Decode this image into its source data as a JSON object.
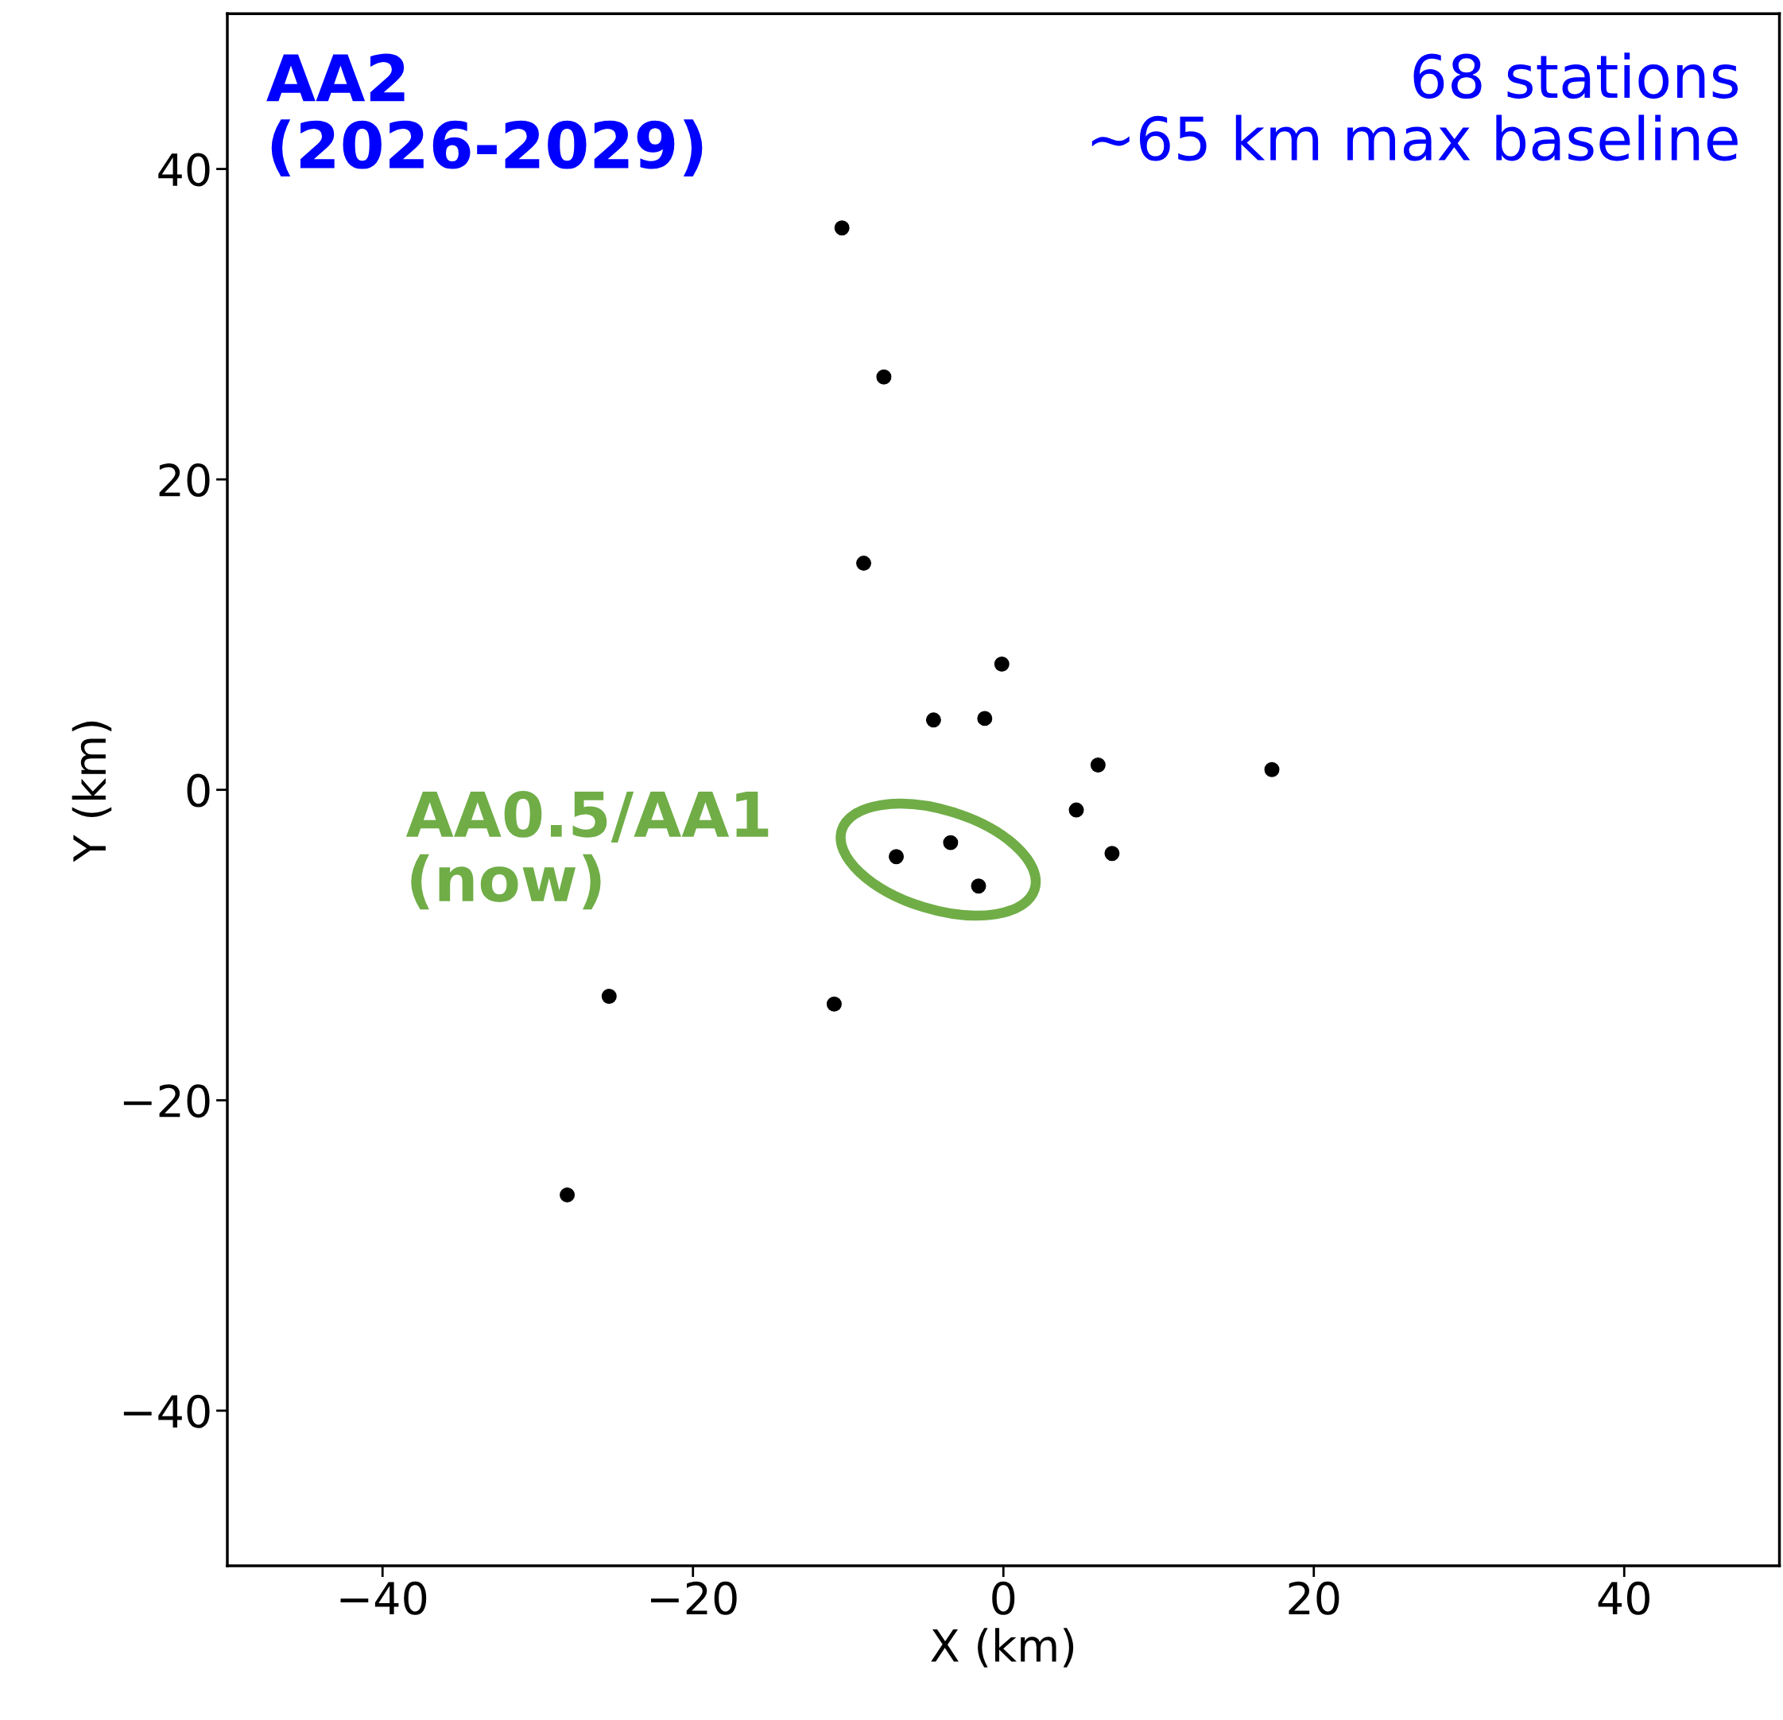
{
  "chart_data": {
    "type": "scatter",
    "title": "AA2\n(2026-2029)",
    "subtitle": "68 stations\n~65 km max baseline",
    "xlabel": "X (km)",
    "ylabel": "Y (km)",
    "x": [
      -10.4,
      -7.7,
      -9.0,
      -0.1,
      -4.5,
      -1.2,
      6.1,
      17.3,
      4.7,
      7.0,
      -6.9,
      -3.4,
      -1.6,
      -25.4,
      -10.9,
      -28.1
    ],
    "values": [
      36.2,
      26.6,
      14.6,
      8.1,
      4.5,
      4.6,
      1.6,
      1.3,
      -1.3,
      -4.1,
      -4.3,
      -3.4,
      -6.2,
      -13.3,
      -13.8,
      -26.1
    ],
    "color": "#000000",
    "marker": "circle",
    "annotations": [
      "AA0.5/AA1\n(now)"
    ],
    "xlim": [
      -50,
      50
    ],
    "ylim": [
      -50,
      50
    ],
    "xticks": [
      -40,
      -20,
      0,
      20,
      40
    ],
    "yticks": [
      -40,
      -20,
      0,
      20,
      40
    ],
    "grid": false
  }
}
